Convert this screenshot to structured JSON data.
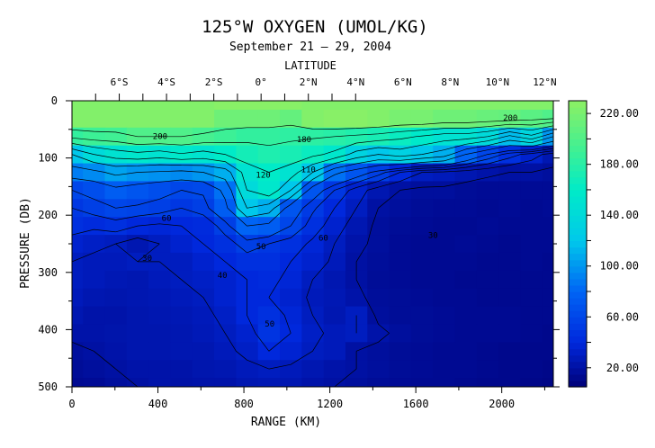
{
  "chart_data": {
    "type": "heatmap",
    "title": "125°W OXYGEN (UMOL/KG)",
    "subtitle": "September 21 – 29, 2004",
    "xlabel": "RANGE (KM)",
    "ylabel": "PRESSURE (DB)",
    "top_axis_label": "LATITUDE",
    "xlim": [
      0,
      2240
    ],
    "ylim": [
      500,
      0
    ],
    "x_ticks": [
      0,
      400,
      800,
      1200,
      1600,
      2000
    ],
    "x_tick_labels": [
      "0",
      "400",
      "800",
      "1200",
      "1600",
      "2000"
    ],
    "y_ticks": [
      0,
      100,
      200,
      300,
      400,
      500
    ],
    "y_tick_labels": [
      "0",
      "100",
      "200",
      "300",
      "400",
      "500"
    ],
    "latitude_ticks": [
      {
        "label": "6°S",
        "range_km": 220
      },
      {
        "label": "4°S",
        "range_km": 440
      },
      {
        "label": "2°S",
        "range_km": 660
      },
      {
        "label": "0°",
        "range_km": 880
      },
      {
        "label": "2°N",
        "range_km": 1100
      },
      {
        "label": "4°N",
        "range_km": 1320
      },
      {
        "label": "6°N",
        "range_km": 1540
      },
      {
        "label": "8°N",
        "range_km": 1760
      },
      {
        "label": "10°N",
        "range_km": 1980
      },
      {
        "label": "12°N",
        "range_km": 2200
      }
    ],
    "colorbar": {
      "range": [
        5,
        230
      ],
      "tick_values": [
        20,
        60,
        100,
        140,
        180,
        220
      ],
      "tick_labels": [
        "20.00",
        "60.00",
        "100.00",
        "140.00",
        "180.00",
        "220.00"
      ]
    },
    "contour_labels": [
      {
        "text": "200",
        "x": 410,
        "y": 62
      },
      {
        "text": "180",
        "x": 1080,
        "y": 68
      },
      {
        "text": "200",
        "x": 2040,
        "y": 30
      },
      {
        "text": "120",
        "x": 890,
        "y": 130
      },
      {
        "text": "110",
        "x": 1100,
        "y": 120
      },
      {
        "text": "60",
        "x": 440,
        "y": 205
      },
      {
        "text": "60",
        "x": 1170,
        "y": 240
      },
      {
        "text": "30",
        "x": 350,
        "y": 275
      },
      {
        "text": "30",
        "x": 1680,
        "y": 235
      },
      {
        "text": "50",
        "x": 880,
        "y": 255
      },
      {
        "text": "50",
        "x": 920,
        "y": 390
      },
      {
        "text": "40",
        "x": 700,
        "y": 305
      }
    ],
    "series": [
      {
        "values": [
          [
            225,
            225,
            225,
            225,
            225,
            225,
            225,
            228,
            228,
            228,
            228,
            225,
            225,
            225,
            225,
            225,
            225,
            225,
            225,
            225,
            225,
            225,
            225
          ],
          [
            225,
            225,
            225,
            225,
            225,
            225,
            225,
            215,
            215,
            215,
            210,
            225,
            228,
            228,
            225,
            220,
            220,
            215,
            215,
            212,
            210,
            205,
            200
          ],
          [
            185,
            190,
            192,
            200,
            200,
            200,
            195,
            190,
            185,
            185,
            183,
            182,
            180,
            176,
            172,
            165,
            158,
            150,
            150,
            140,
            115,
            135,
            100
          ],
          [
            120,
            140,
            150,
            155,
            150,
            158,
            152,
            160,
            170,
            175,
            172,
            165,
            155,
            132,
            120,
            130,
            120,
            110,
            80,
            60,
            45,
            35,
            25
          ],
          [
            90,
            95,
            105,
            100,
            98,
            95,
            100,
            110,
            150,
            160,
            150,
            120,
            85,
            70,
            55,
            40,
            30,
            28,
            25,
            22,
            20,
            20,
            18
          ],
          [
            60,
            65,
            75,
            70,
            65,
            60,
            62,
            85,
            140,
            155,
            120,
            70,
            50,
            35,
            25,
            20,
            18,
            18,
            16,
            15,
            15,
            15,
            15
          ],
          [
            50,
            55,
            60,
            58,
            55,
            50,
            55,
            75,
            120,
            110,
            70,
            52,
            40,
            30,
            20,
            18,
            16,
            15,
            15,
            14,
            15,
            14,
            15
          ],
          [
            45,
            42,
            45,
            40,
            38,
            40,
            42,
            55,
            80,
            75,
            60,
            45,
            35,
            25,
            18,
            16,
            15,
            14,
            14,
            15,
            14,
            14,
            14
          ],
          [
            35,
            32,
            30,
            25,
            30,
            35,
            40,
            45,
            55,
            50,
            45,
            38,
            30,
            22,
            18,
            15,
            14,
            14,
            15,
            14,
            13,
            14,
            14
          ],
          [
            30,
            28,
            28,
            30,
            30,
            30,
            35,
            40,
            45,
            45,
            40,
            35,
            28,
            20,
            17,
            15,
            14,
            14,
            14,
            13,
            13,
            14,
            13
          ],
          [
            30,
            28,
            26,
            25,
            28,
            30,
            32,
            35,
            40,
            42,
            38,
            30,
            25,
            20,
            16,
            15,
            14,
            14,
            13,
            13,
            13,
            13,
            13
          ],
          [
            28,
            25,
            24,
            25,
            26,
            28,
            30,
            35,
            40,
            40,
            35,
            28,
            26,
            22,
            17,
            16,
            15,
            14,
            14,
            13,
            13,
            13,
            13
          ],
          [
            25,
            22,
            22,
            24,
            25,
            26,
            28,
            32,
            40,
            45,
            38,
            30,
            25,
            30,
            18,
            16,
            16,
            15,
            14,
            14,
            14,
            13,
            13
          ],
          [
            22,
            22,
            23,
            24,
            24,
            25,
            27,
            30,
            35,
            48,
            40,
            32,
            28,
            30,
            22,
            18,
            16,
            15,
            14,
            14,
            14,
            13,
            12
          ],
          [
            18,
            20,
            22,
            24,
            24,
            25,
            25,
            28,
            32,
            40,
            36,
            30,
            28,
            20,
            18,
            16,
            15,
            14,
            14,
            13,
            12,
            12,
            12
          ],
          [
            16,
            18,
            20,
            22,
            22,
            22,
            24,
            25,
            28,
            30,
            28,
            25,
            22,
            20,
            18,
            16,
            15,
            14,
            14,
            13,
            12,
            12,
            11
          ],
          [
            14,
            15,
            18,
            20,
            22,
            21,
            22,
            22,
            25,
            26,
            25,
            22,
            20,
            18,
            16,
            15,
            14,
            14,
            13,
            12,
            12,
            11,
            10
          ]
        ]
      }
    ]
  }
}
